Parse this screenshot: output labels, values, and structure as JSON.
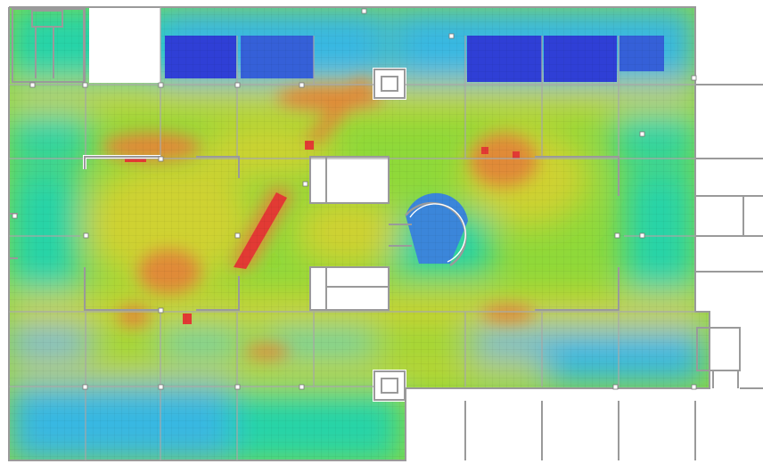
{
  "heatmap": {
    "type": "floor-plan-heatmap",
    "palette": [
      "#2f3fd6",
      "#39b8e2",
      "#28d4a8",
      "#8fd93a",
      "#cfd233",
      "#e08a38",
      "#e23a34"
    ],
    "background_color": "#ffffff",
    "wall_color": "#9a9a9a"
  }
}
